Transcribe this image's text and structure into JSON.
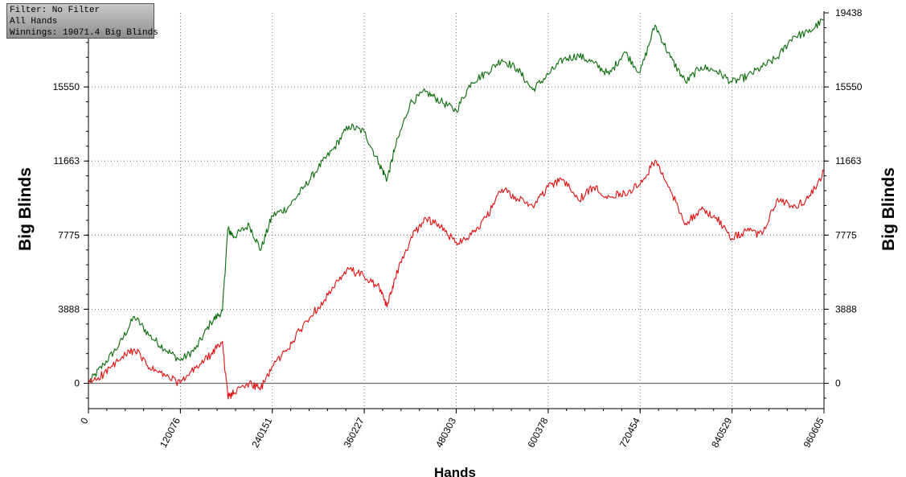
{
  "info_box": {
    "filter": "Filter: No Filter",
    "hands_filter": "All Hands",
    "winnings": "Winnings: 19071.4 Big Blinds"
  },
  "chart_data": {
    "type": "line",
    "title": "",
    "xlabel": "Hands",
    "ylabel": "Big Blinds",
    "ylabel_right": "Big Blinds",
    "xlim": [
      0,
      960605
    ],
    "ylim": [
      -1000,
      19438
    ],
    "x_ticks": [
      "0",
      "120076",
      "240151",
      "360227",
      "480303",
      "600378",
      "720454",
      "840529",
      "960605"
    ],
    "x_tick_values": [
      0,
      120076,
      240151,
      360227,
      480303,
      600378,
      720454,
      840529,
      960605
    ],
    "y_ticks": [
      "0",
      "3888",
      "7775",
      "11663",
      "15550",
      "19438"
    ],
    "y_tick_values": [
      0,
      3888,
      7775,
      11663,
      15550,
      19438
    ],
    "grid": true,
    "colors": {
      "series_green": "#0a6b0a",
      "series_red": "#e01010",
      "grid": "#555555",
      "zero_line": "#6a6a6a"
    },
    "x": [
      0,
      20000,
      40000,
      60000,
      80000,
      100000,
      120076,
      140000,
      160000,
      175000,
      182000,
      190000,
      210000,
      225000,
      240151,
      260000,
      280000,
      300000,
      320000,
      340000,
      360227,
      380000,
      390000,
      400000,
      420000,
      440000,
      460000,
      480303,
      500000,
      520000,
      540000,
      560000,
      580000,
      600378,
      620000,
      640000,
      660000,
      680000,
      700000,
      720454,
      740000,
      760000,
      780000,
      800000,
      820000,
      840529,
      860000,
      880000,
      900000,
      920000,
      940000,
      960605
    ],
    "series": [
      {
        "values": [
          0,
          1000,
          2000,
          3500,
          2500,
          1800,
          1200,
          1800,
          3200,
          3800,
          8100,
          7700,
          8300,
          7000,
          8800,
          9200,
          10200,
          11300,
          12300,
          13500,
          13200,
          11500,
          10700,
          12300,
          14700,
          15300,
          14800,
          14300,
          15800,
          16300,
          17000,
          16500,
          15400,
          16200,
          17000,
          17200,
          16800,
          16200,
          17400,
          16300,
          18800,
          17100,
          15800,
          16600,
          16400,
          15800,
          16100,
          16600,
          17100,
          18200,
          18400,
          19100
        ]
      },
      {
        "values": [
          0,
          500,
          1200,
          1800,
          800,
          400,
          0,
          800,
          1500,
          2200,
          -700,
          -500,
          0,
          -300,
          900,
          1800,
          3000,
          4000,
          5000,
          6000,
          5600,
          5000,
          4000,
          5500,
          7500,
          8700,
          8200,
          7400,
          7800,
          8700,
          10200,
          9700,
          9300,
          10300,
          10700,
          9600,
          10300,
          9800,
          10000,
          10400,
          11700,
          10100,
          8400,
          9100,
          8700,
          7600,
          8000,
          7800,
          9700,
          9200,
          9700,
          11100
        ]
      }
    ]
  }
}
